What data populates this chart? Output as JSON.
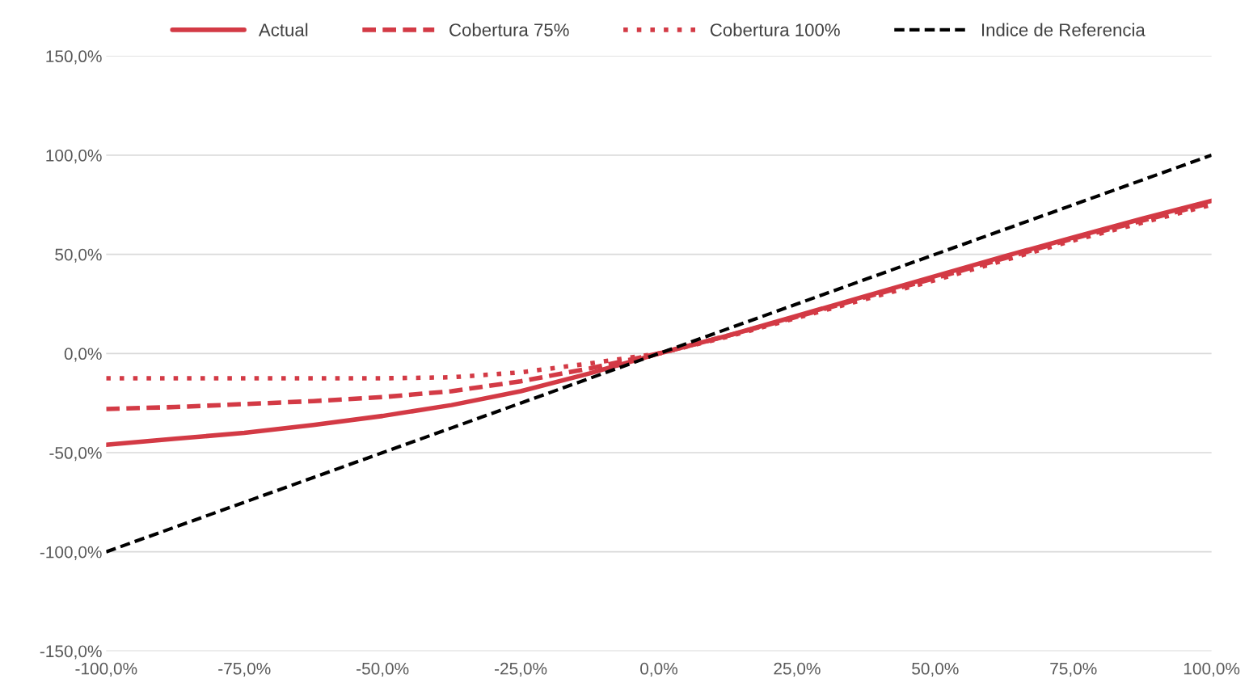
{
  "chart_data": {
    "type": "line",
    "x": [
      -100,
      -87.5,
      -75,
      -62.5,
      -50,
      -37.5,
      -25,
      -12.5,
      0,
      12.5,
      25,
      37.5,
      50,
      62.5,
      75,
      87.5,
      100
    ],
    "series": [
      {
        "name": "Actual",
        "color": "#d33a45",
        "line_style": "solid",
        "values": [
          -46,
          -43,
          -40,
          -36,
          -31.5,
          -26,
          -19,
          -10,
          0,
          9,
          19,
          29,
          39,
          49,
          58.5,
          68,
          77
        ]
      },
      {
        "name": "Cobertura 75%",
        "color": "#d33a45",
        "line_style": "dashed",
        "values": [
          -28,
          -27,
          -25.5,
          -24,
          -22,
          -19,
          -14,
          -7.5,
          0,
          9,
          18.5,
          28.5,
          38,
          48,
          58,
          67,
          76
        ]
      },
      {
        "name": "Cobertura 100%",
        "color": "#d33a45",
        "line_style": "dotted",
        "values": [
          -12.5,
          -12.5,
          -12.5,
          -12.5,
          -12.5,
          -12,
          -9.5,
          -5,
          0,
          8.5,
          18,
          27.5,
          37,
          47,
          57,
          66,
          75
        ]
      },
      {
        "name": "Indice de Referencia",
        "color": "#000000",
        "line_style": "dashed",
        "values": [
          -100,
          -87.5,
          -75,
          -62.5,
          -50,
          -37.5,
          -25,
          -12.5,
          0,
          12.5,
          25,
          37.5,
          50,
          62.5,
          75,
          87.5,
          100
        ]
      }
    ],
    "xlim": [
      -100,
      100
    ],
    "xticks": [
      {
        "value": -100,
        "label": "-100,0%"
      },
      {
        "value": -75,
        "label": "-75,0%"
      },
      {
        "value": -50,
        "label": "-50,0%"
      },
      {
        "value": -25,
        "label": "-25,0%"
      },
      {
        "value": 0,
        "label": "0,0%"
      },
      {
        "value": 25,
        "label": "25,0%"
      },
      {
        "value": 50,
        "label": "50,0%"
      },
      {
        "value": 75,
        "label": "75,0%"
      },
      {
        "value": 100,
        "label": "100,0%"
      }
    ],
    "ylim": [
      -150,
      150
    ],
    "yticks": [
      {
        "value": -150,
        "label": "-150,0%"
      },
      {
        "value": -100,
        "label": "-100,0%"
      },
      {
        "value": -50,
        "label": "-50,0%"
      },
      {
        "value": 0,
        "label": "0,0%"
      },
      {
        "value": 50,
        "label": "50,0%"
      },
      {
        "value": 100,
        "label": "100,0%"
      },
      {
        "value": 150,
        "label": "150,0%"
      }
    ],
    "grid": "y",
    "legend": "top"
  }
}
